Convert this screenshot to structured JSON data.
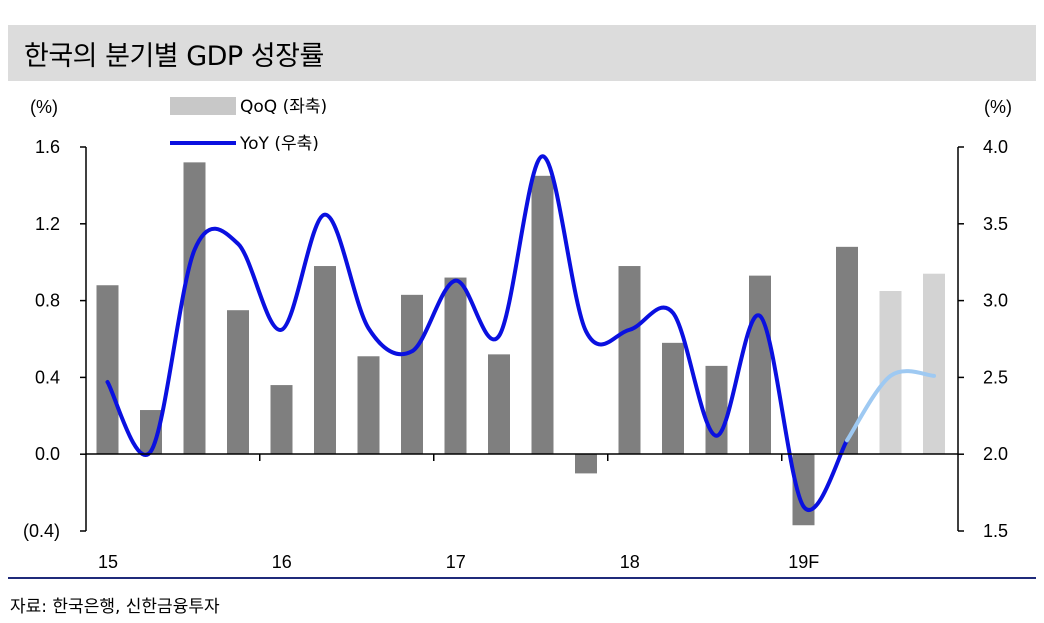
{
  "title": "한국의 분기별 GDP 성장률",
  "source": "자료: 한국은행, 신한금융투자",
  "chart_data": {
    "type": "bar+line",
    "left_axis": {
      "unit_label": "(%)",
      "ylim": [
        -0.4,
        1.6
      ],
      "ticks": [
        "(0.4)",
        "0.0",
        "0.4",
        "0.8",
        "1.2",
        "1.6"
      ],
      "tick_values": [
        -0.4,
        0.0,
        0.4,
        0.8,
        1.2,
        1.6
      ]
    },
    "right_axis": {
      "unit_label": "(%)",
      "ylim": [
        1.5,
        4.0
      ],
      "ticks": [
        "1.5",
        "2.0",
        "2.5",
        "3.0",
        "3.5",
        "4.0"
      ],
      "tick_values": [
        1.5,
        2.0,
        2.5,
        3.0,
        3.5,
        4.0
      ]
    },
    "x_labels": [
      "15",
      "16",
      "17",
      "18",
      "19F"
    ],
    "quarters_per_label": 4,
    "legend": [
      {
        "label": "QoQ (좌축)",
        "color": "#c8c8c8",
        "kind": "bar"
      },
      {
        "label": "YoY (우축)",
        "color": "#0a10e0",
        "kind": "line"
      }
    ],
    "series": [
      {
        "name": "QoQ (좌축)",
        "axis": "left",
        "kind": "bar",
        "values": [
          0.88,
          0.23,
          1.52,
          0.75,
          0.36,
          0.98,
          0.51,
          0.83,
          0.92,
          0.52,
          1.45,
          -0.1,
          0.98,
          0.58,
          0.46,
          0.93,
          -0.37,
          1.08,
          0.85,
          0.94
        ],
        "forecast_from_index": 18,
        "color": "#7f7f7f",
        "forecast_color": "#d3d3d3"
      },
      {
        "name": "YoY (우축)",
        "axis": "right",
        "kind": "line",
        "values": [
          2.47,
          2.02,
          3.33,
          3.37,
          2.81,
          3.56,
          2.82,
          2.67,
          3.13,
          2.77,
          3.94,
          2.8,
          2.81,
          2.92,
          2.12,
          2.9,
          1.66,
          2.09,
          2.51,
          2.51
        ],
        "forecast_from_index": 17,
        "color": "#0a10e0",
        "forecast_color": "#9ec9f2"
      }
    ],
    "grid": false
  }
}
